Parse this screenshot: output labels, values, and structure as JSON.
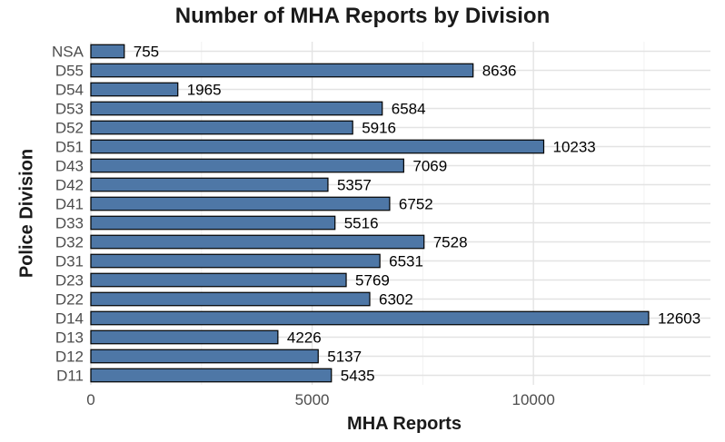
{
  "chart_data": {
    "type": "bar",
    "orientation": "horizontal",
    "title": "Number of MHA Reports by Division",
    "xlabel": "MHA Reports",
    "ylabel": "Police Division",
    "categories": [
      "D11",
      "D12",
      "D13",
      "D14",
      "D22",
      "D23",
      "D31",
      "D32",
      "D33",
      "D41",
      "D42",
      "D43",
      "D51",
      "D52",
      "D53",
      "D54",
      "D55",
      "NSA"
    ],
    "values": [
      5435,
      5137,
      4226,
      12603,
      6302,
      5769,
      6531,
      7528,
      5516,
      6752,
      5357,
      7069,
      10233,
      5916,
      6584,
      1965,
      8636,
      755
    ],
    "xlim": [
      0,
      14000
    ],
    "xticks": [
      0,
      5000,
      10000
    ],
    "xtick_labels": [
      "0",
      "5000",
      "10000"
    ],
    "grid": true,
    "bar_color": "#4e77a6",
    "bar_edge_color": "#000000",
    "data_labels": true
  }
}
